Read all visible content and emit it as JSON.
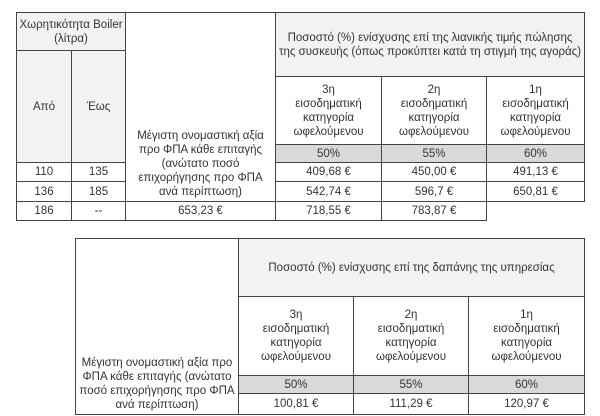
{
  "table1": {
    "capacity_header": "Χωρητικότητα Boiler (λίτρα)",
    "from_label": "Από",
    "to_label": "Έως",
    "description": "Μέγιστη ονομαστική αξία προ ΦΠΑ κάθε επιταγής (ανώτατο ποσό επιχορήγησης προ ΦΠΑ ανά περίπτωση)",
    "support_header": "Ποσοστό (%) ενίσχυσης  επί της λιανικής τιμής πώλησης της συσκευής (όπως προκύπτει κατά τη στιγμή της αγοράς)",
    "categories": [
      {
        "rank": "3η",
        "label": "εισοδηματική κατηγορία ωφελούμενου",
        "percent": "50%"
      },
      {
        "rank": "2η",
        "label": "εισοδηματική κατηγορία ωφελούμενου",
        "percent": "55%"
      },
      {
        "rank": "1η",
        "label": "εισοδηματική κατηγορία ωφελούμενου",
        "percent": "60%"
      }
    ],
    "rows": [
      {
        "from": "110",
        "to": "135",
        "values": [
          "409,68 €",
          "450,00 €",
          "491,13 €"
        ]
      },
      {
        "from": "136",
        "to": "185",
        "values": [
          "542,74 €",
          "596,7 €",
          "650,81 €"
        ]
      },
      {
        "from": "186",
        "to": "--",
        "values": [
          "653,23 €",
          "718,55 €",
          "783,87 €"
        ]
      }
    ]
  },
  "table2": {
    "description": "Μέγιστη ονομαστική αξία προ ΦΠΑ κάθε επιταγής (ανώτατο ποσό επιχορήγησης προ ΦΠΑ ανά περίπτωση)",
    "support_header": "Ποσοστό (%) ενίσχυσης  επί της δαπάνης της υπηρεσίας",
    "categories": [
      {
        "rank": "3η",
        "label": "εισοδηματική κατηγορία ωφελούμενου",
        "percent": "50%"
      },
      {
        "rank": "2η",
        "label": "εισοδηματική κατηγορία ωφελούμενου",
        "percent": "55%"
      },
      {
        "rank": "1η",
        "label": "εισοδηματική κατηγορία ωφελούμενου",
        "percent": "60%"
      }
    ],
    "values": [
      "100,81 €",
      "111,29 €",
      "120,97 €"
    ]
  }
}
